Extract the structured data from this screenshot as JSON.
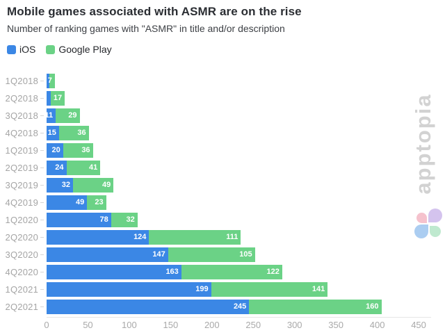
{
  "header": {
    "title": "Mobile games associated with ASMR are on the rise",
    "subtitle": "Number of ranking games with \"ASMR\" in title and/or description"
  },
  "legend": {
    "items": [
      {
        "label": "iOS",
        "color": "#3b87e5"
      },
      {
        "label": "Google Play",
        "color": "#6bd286"
      }
    ]
  },
  "watermark": {
    "text": "apptopia",
    "text_color": "#d2d2d2",
    "logo_colors": {
      "top_left": "#f5c2cd",
      "top_right": "#d4c3ee",
      "bottom_left": "#abcdf1",
      "bottom_right": "#bfe9cf"
    }
  },
  "chart_data": {
    "type": "bar",
    "orientation": "horizontal",
    "stacked": true,
    "title": "Mobile games associated with ASMR are on the rise",
    "subtitle": "Number of ranking games with \"ASMR\" in title and/or description",
    "categories": [
      "1Q2018",
      "2Q2018",
      "3Q2018",
      "4Q2018",
      "1Q2019",
      "2Q2019",
      "3Q2019",
      "4Q2019",
      "1Q2020",
      "2Q2020",
      "3Q2020",
      "4Q2020",
      "1Q2021",
      "2Q2021"
    ],
    "series": [
      {
        "name": "iOS",
        "color": "#3b87e5",
        "values": [
          3,
          5,
          11,
          15,
          20,
          24,
          32,
          49,
          78,
          124,
          147,
          163,
          199,
          245
        ],
        "labels": [
          "",
          "",
          "11",
          "15",
          "20",
          "24",
          "32",
          "49",
          "78",
          "124",
          "147",
          "163",
          "199",
          "245"
        ]
      },
      {
        "name": "Google Play",
        "color": "#6bd286",
        "values": [
          7,
          17,
          29,
          36,
          36,
          41,
          49,
          23,
          32,
          111,
          105,
          122,
          141,
          160
        ],
        "labels": [
          "7",
          "17",
          "29",
          "36",
          "36",
          "41",
          "49",
          "23",
          "32",
          "111",
          "105",
          "122",
          "141",
          "160"
        ]
      }
    ],
    "xlim": [
      0,
      450
    ],
    "x_ticks": [
      0,
      50,
      100,
      150,
      200,
      250,
      300,
      350,
      400,
      450
    ],
    "grid": false,
    "legend_position": "top-left",
    "value_labels": "inside-right"
  }
}
